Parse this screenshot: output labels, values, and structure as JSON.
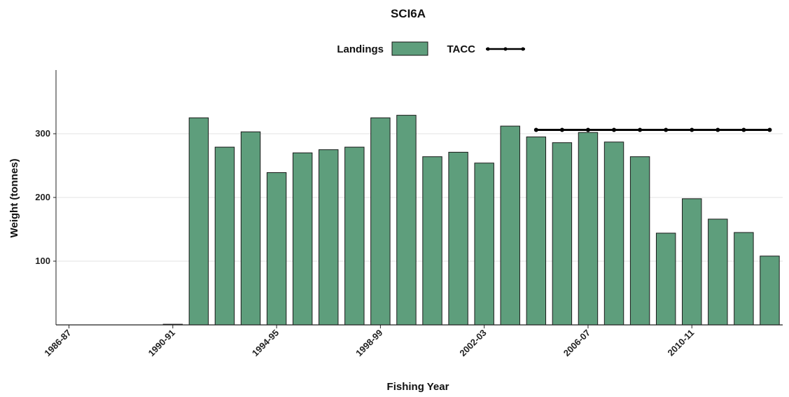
{
  "chart_data": {
    "type": "bar",
    "title": "SCI6A",
    "xlabel": "Fishing Year",
    "ylabel": "Weight (tonnes)",
    "ylim": [
      0,
      400
    ],
    "yticks": [
      100,
      200,
      300
    ],
    "grid": "horizontal",
    "legend_position": "top",
    "categories": [
      "1986-87",
      "1987-88",
      "1988-89",
      "1989-90",
      "1990-91",
      "1991-92",
      "1992-93",
      "1993-94",
      "1994-95",
      "1995-96",
      "1996-97",
      "1997-98",
      "1998-99",
      "1999-00",
      "2000-01",
      "2001-02",
      "2002-03",
      "2003-04",
      "2004-05",
      "2005-06",
      "2006-07",
      "2007-08",
      "2008-09",
      "2009-10",
      "2010-11",
      "2011-12",
      "2012-13",
      "2013-14"
    ],
    "tick_labels": [
      "1986-87",
      "1990-91",
      "1994-95",
      "1998-99",
      "2002-03",
      "2006-07",
      "2010-11"
    ],
    "series": [
      {
        "name": "Landings",
        "kind": "bar",
        "color": "#5e9e7c",
        "values": [
          0,
          0,
          0,
          0,
          1,
          325,
          279,
          303,
          239,
          270,
          275,
          279,
          325,
          329,
          264,
          271,
          254,
          312,
          295,
          286,
          302,
          287,
          264,
          144,
          198,
          166,
          145,
          108
        ]
      },
      {
        "name": "TACC",
        "kind": "line",
        "color": "#000000",
        "values": [
          null,
          null,
          null,
          null,
          null,
          null,
          null,
          null,
          null,
          null,
          null,
          null,
          null,
          null,
          null,
          null,
          null,
          null,
          306,
          306,
          306,
          306,
          306,
          306,
          306,
          306,
          306,
          306
        ]
      }
    ]
  }
}
